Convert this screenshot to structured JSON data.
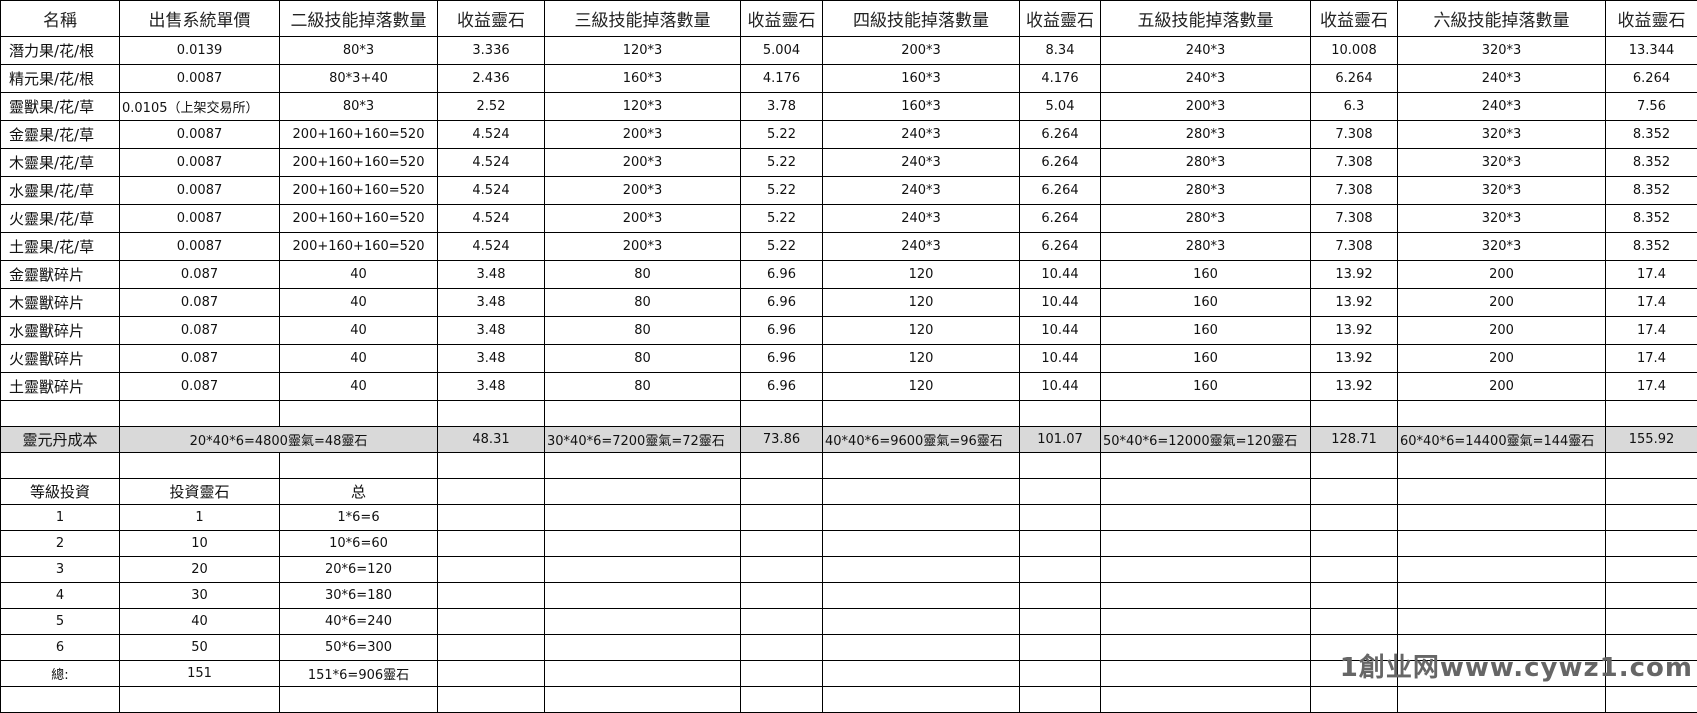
{
  "headers": [
    "名稱",
    "出售系統單價",
    "二級技能掉落數量",
    "收益靈石",
    "三級技能掉落數量",
    "收益靈石",
    "四級技能掉落數量",
    "收益靈石",
    "五級技能掉落數量",
    "收益靈石",
    "六級技能掉落數量",
    "收益靈石"
  ],
  "items": [
    [
      "潛力果/花/根",
      "0.0139",
      "80*3",
      "3.336",
      "120*3",
      "5.004",
      "200*3",
      "8.34",
      "240*3",
      "10.008",
      "320*3",
      "13.344"
    ],
    [
      "精元果/花/根",
      "0.0087",
      "80*3+40",
      "2.436",
      "160*3",
      "4.176",
      "160*3",
      "4.176",
      "240*3",
      "6.264",
      "240*3",
      "6.264"
    ],
    [
      "靈獸果/花/草",
      "0.0105（上架交易所）",
      "80*3",
      "2.52",
      "120*3",
      "3.78",
      "160*3",
      "5.04",
      "200*3",
      "6.3",
      "240*3",
      "7.56"
    ],
    [
      "金靈果/花/草",
      "0.0087",
      "200+160+160=520",
      "4.524",
      "200*3",
      "5.22",
      "240*3",
      "6.264",
      "280*3",
      "7.308",
      "320*3",
      "8.352"
    ],
    [
      "木靈果/花/草",
      "0.0087",
      "200+160+160=520",
      "4.524",
      "200*3",
      "5.22",
      "240*3",
      "6.264",
      "280*3",
      "7.308",
      "320*3",
      "8.352"
    ],
    [
      "水靈果/花/草",
      "0.0087",
      "200+160+160=520",
      "4.524",
      "200*3",
      "5.22",
      "240*3",
      "6.264",
      "280*3",
      "7.308",
      "320*3",
      "8.352"
    ],
    [
      "火靈果/花/草",
      "0.0087",
      "200+160+160=520",
      "4.524",
      "200*3",
      "5.22",
      "240*3",
      "6.264",
      "280*3",
      "7.308",
      "320*3",
      "8.352"
    ],
    [
      "土靈果/花/草",
      "0.0087",
      "200+160+160=520",
      "4.524",
      "200*3",
      "5.22",
      "240*3",
      "6.264",
      "280*3",
      "7.308",
      "320*3",
      "8.352"
    ],
    [
      "金靈獸碎片",
      "0.087",
      "40",
      "3.48",
      "80",
      "6.96",
      "120",
      "10.44",
      "160",
      "13.92",
      "200",
      "17.4"
    ],
    [
      "木靈獸碎片",
      "0.087",
      "40",
      "3.48",
      "80",
      "6.96",
      "120",
      "10.44",
      "160",
      "13.92",
      "200",
      "17.4"
    ],
    [
      "水靈獸碎片",
      "0.087",
      "40",
      "3.48",
      "80",
      "6.96",
      "120",
      "10.44",
      "160",
      "13.92",
      "200",
      "17.4"
    ],
    [
      "火靈獸碎片",
      "0.087",
      "40",
      "3.48",
      "80",
      "6.96",
      "120",
      "10.44",
      "160",
      "13.92",
      "200",
      "17.4"
    ],
    [
      "土靈獸碎片",
      "0.087",
      "40",
      "3.48",
      "80",
      "6.96",
      "120",
      "10.44",
      "160",
      "13.92",
      "200",
      "17.4"
    ]
  ],
  "cost": {
    "label": "靈元丹成本",
    "cells": [
      [
        "20*40*6=4800靈氣=48靈石",
        "48.31"
      ],
      [
        "30*40*6=7200靈氣=72靈石",
        "73.86"
      ],
      [
        "40*40*6=9600靈氣=96靈石",
        "101.07"
      ],
      [
        "50*40*6=12000靈氣=120靈石",
        "128.71"
      ],
      [
        "60*40*6=14400靈氣=144靈石",
        "155.92"
      ]
    ]
  },
  "investment": {
    "headers": [
      "等級投資",
      "投資靈石",
      "总"
    ],
    "rows": [
      [
        "1",
        "1",
        "1*6=6"
      ],
      [
        "2",
        "10",
        "10*6=60"
      ],
      [
        "3",
        "20",
        "20*6=120"
      ],
      [
        "4",
        "30",
        "30*6=180"
      ],
      [
        "5",
        "40",
        "40*6=240"
      ],
      [
        "6",
        "50",
        "50*6=300"
      ],
      [
        "總:",
        "151",
        "151*6=906靈石"
      ]
    ]
  },
  "watermark": "1創业网www.cywz1.com"
}
